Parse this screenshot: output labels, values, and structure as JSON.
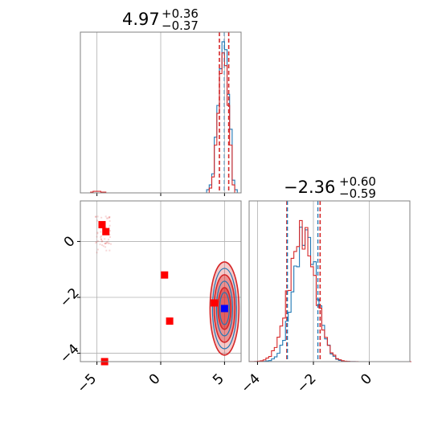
{
  "chart_data": [
    {
      "type": "histogram",
      "panel": "marginal-x",
      "title": {
        "value": "4.97",
        "plus": "+0.36",
        "minus": "−0.37"
      },
      "xlim": [
        -6.3,
        6.3
      ],
      "xticks": [
        -5,
        0,
        5
      ],
      "grid": true,
      "quantile_lines": {
        "median": 4.97,
        "lower": 4.6,
        "upper": 5.33
      },
      "series": [
        {
          "color": "#1f77b4",
          "bins_x": [
            3.7,
            3.9,
            4.1,
            4.3,
            4.5,
            4.7,
            4.9,
            5.1,
            5.3,
            5.5,
            5.7,
            5.9
          ],
          "counts": [
            0.02,
            0.05,
            0.12,
            0.35,
            0.55,
            0.78,
            0.95,
            0.9,
            0.62,
            0.4,
            0.08,
            0.02
          ]
        },
        {
          "color": "#d62728",
          "bins_x": [
            -5.4,
            -5.2,
            -5.0,
            -4.8,
            -4.6,
            -4.4,
            3.9,
            4.1,
            4.3,
            4.5,
            4.7,
            4.9,
            5.1,
            5.3,
            5.5,
            5.7
          ],
          "counts": [
            0.005,
            0.01,
            0.01,
            0.01,
            0.005,
            0.005,
            0.03,
            0.1,
            0.3,
            0.5,
            0.75,
            0.88,
            0.8,
            0.55,
            0.3,
            0.05
          ]
        }
      ]
    },
    {
      "type": "scatter",
      "panel": "joint",
      "xlim": [
        -6.3,
        6.3
      ],
      "ylim": [
        -4.3,
        1.45
      ],
      "xticks": [
        -5,
        0,
        5
      ],
      "yticks": [
        -4,
        -2,
        0
      ],
      "grid": true,
      "markers_red": [
        {
          "x": -4.6,
          "y": 0.6
        },
        {
          "x": -4.3,
          "y": 0.35
        },
        {
          "x": 0.3,
          "y": -1.2
        },
        {
          "x": 0.7,
          "y": -2.85
        },
        {
          "x": 4.2,
          "y": -2.2
        },
        {
          "x": -4.4,
          "y": -4.3
        }
      ],
      "marker_blue": {
        "x": 5.0,
        "y": -2.4
      },
      "contour_center": {
        "x": 5.0,
        "y": -2.4
      }
    },
    {
      "type": "histogram",
      "panel": "marginal-y",
      "title": {
        "value": "−2.36",
        "plus": "+0.60",
        "minus": "−0.59"
      },
      "xlim": [
        -4.3,
        1.45
      ],
      "xticks": [
        -4,
        -2,
        0
      ],
      "grid": true,
      "quantile_lines": {
        "median": -2.36,
        "lower": -2.95,
        "upper": -1.76
      },
      "series": [
        {
          "color": "#1f77b4",
          "peak": -2.3,
          "width": 0.55
        },
        {
          "color": "#d62728",
          "peak": -2.4,
          "width": 0.62
        }
      ]
    }
  ],
  "colors": {
    "blue": "#1f77b4",
    "red": "#d62728",
    "grid": "#b0b0b0",
    "axis": "#808080"
  }
}
